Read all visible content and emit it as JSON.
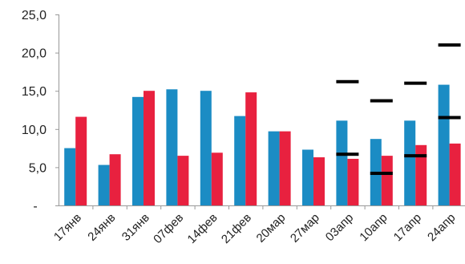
{
  "chart_data": {
    "type": "bar",
    "title": "",
    "xlabel": "",
    "ylabel": "",
    "categories": [
      "17янв",
      "24янв",
      "31янв",
      "07фев",
      "14фев",
      "21фев",
      "20мар",
      "27мар",
      "03апр",
      "10апр",
      "17апр",
      "24апр"
    ],
    "series": [
      {
        "color": "#1b8cc4",
        "values": [
          7.5,
          5.3,
          14.2,
          15.2,
          15.0,
          11.7,
          9.7,
          7.3,
          11.1,
          8.7,
          11.1,
          15.8
        ]
      },
      {
        "color": "#e8213f",
        "values": [
          11.6,
          6.7,
          15.0,
          6.5,
          6.9,
          14.8,
          9.7,
          6.3,
          6.1,
          6.5,
          7.9,
          8.1
        ]
      }
    ],
    "markers": [
      {
        "category": "03апр",
        "values": [
          16.2,
          6.7
        ]
      },
      {
        "category": "10апр",
        "values": [
          13.7,
          4.2
        ]
      },
      {
        "category": "17апр",
        "values": [
          16.0,
          6.5
        ]
      },
      {
        "category": "24апр",
        "values": [
          21.0,
          11.5
        ]
      }
    ],
    "marker_color": "#000000",
    "ylim": [
      0,
      25
    ],
    "yticks": [
      0,
      5,
      10,
      15,
      20,
      25
    ],
    "ytick_labels": [
      "-",
      "5,0",
      "10,0",
      "15,0",
      "20,0",
      "25,0"
    ],
    "grid": false,
    "legend": "none"
  }
}
